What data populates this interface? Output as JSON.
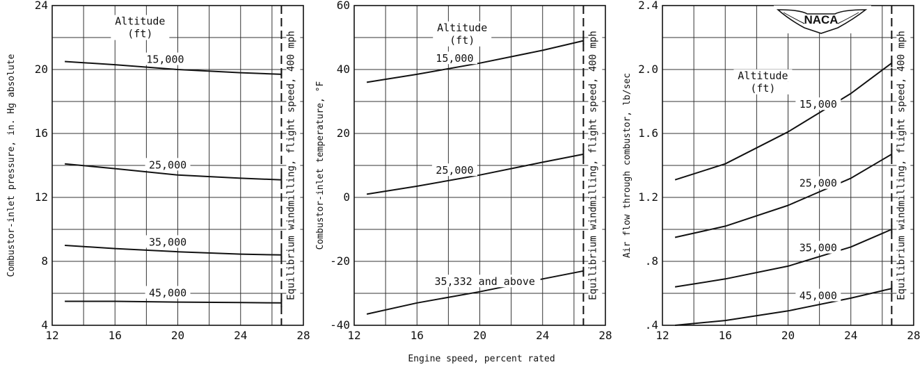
{
  "figure": {
    "common_xlabel": "Engine speed, percent rated",
    "logo_text": "NACA"
  },
  "chart_data": [
    {
      "type": "line",
      "ylabel": "Combustor-inlet pressure, in. Hg absolute",
      "xlim": [
        12,
        28
      ],
      "ylim": [
        4,
        24
      ],
      "xticks": [
        12,
        16,
        20,
        24,
        28
      ],
      "yticks": [
        4,
        8,
        12,
        16,
        20,
        24
      ],
      "xtick_labels": [
        "12",
        "16",
        "20",
        "24",
        "28"
      ],
      "ytick_labels": [
        "4",
        "8",
        "12",
        "16",
        "20",
        "24"
      ],
      "legend_title": [
        "Altitude",
        "(ft)"
      ],
      "windmill_x": 26.6,
      "windmill_label": "Equilibrium windmilling, flight speed, 400 mph",
      "series": [
        {
          "name": "15,000",
          "x": [
            12.8,
            16,
            20,
            24,
            26.6
          ],
          "y": [
            20.5,
            20.3,
            20.0,
            19.8,
            19.7
          ]
        },
        {
          "name": "25,000",
          "x": [
            12.8,
            16,
            20,
            24,
            26.6
          ],
          "y": [
            14.1,
            13.8,
            13.4,
            13.2,
            13.1
          ]
        },
        {
          "name": "35,000",
          "x": [
            12.8,
            16,
            20,
            24,
            26.6
          ],
          "y": [
            9.0,
            8.8,
            8.6,
            8.45,
            8.4
          ]
        },
        {
          "name": "45,000",
          "x": [
            12.8,
            16,
            20,
            24,
            26.6
          ],
          "y": [
            5.5,
            5.5,
            5.45,
            5.42,
            5.4
          ]
        }
      ]
    },
    {
      "type": "line",
      "ylabel": "Combustor-inlet temperature, °F",
      "xlim": [
        12,
        28
      ],
      "ylim": [
        -40,
        60
      ],
      "xticks": [
        12,
        16,
        20,
        24,
        28
      ],
      "yticks": [
        -40,
        -20,
        0,
        20,
        40,
        60
      ],
      "xtick_labels": [
        "12",
        "16",
        "20",
        "24",
        "28"
      ],
      "ytick_labels": [
        "-40",
        "-20",
        "0",
        "20",
        "40",
        "60"
      ],
      "legend_title": [
        "Altitude",
        "(ft)"
      ],
      "windmill_x": 26.6,
      "windmill_label": "Equilibrium windmilling, flight speed, 400 mph",
      "series": [
        {
          "name": "15,000",
          "x": [
            12.8,
            16,
            20,
            24,
            26.6
          ],
          "y": [
            36,
            38.5,
            42,
            46,
            49
          ]
        },
        {
          "name": "25,000",
          "x": [
            12.8,
            16,
            20,
            24,
            26.6
          ],
          "y": [
            1,
            3.5,
            7,
            11,
            13.5
          ]
        },
        {
          "name": "35,332 and above",
          "x": [
            12.8,
            16,
            20,
            24,
            26.6
          ],
          "y": [
            -36.5,
            -33,
            -29.5,
            -25.5,
            -23
          ]
        }
      ]
    },
    {
      "type": "line",
      "ylabel": "Air flow through combustor, lb/sec",
      "xlim": [
        12,
        28
      ],
      "ylim": [
        0.4,
        2.4
      ],
      "xticks": [
        12,
        16,
        20,
        24,
        28
      ],
      "yticks": [
        0.4,
        0.8,
        1.2,
        1.6,
        2.0,
        2.4
      ],
      "xtick_labels": [
        "12",
        "16",
        "20",
        "24",
        "28"
      ],
      "ytick_labels": [
        ".4",
        ".8",
        "1.2",
        "1.6",
        "2.0",
        "2.4"
      ],
      "legend_title": [
        "Altitude",
        "(ft)"
      ],
      "windmill_x": 26.6,
      "windmill_label": "Equilibrium windmilling, flight speed, 400 mph",
      "series": [
        {
          "name": "15,000",
          "x": [
            12.8,
            16,
            20,
            24,
            26.6
          ],
          "y": [
            1.31,
            1.41,
            1.61,
            1.85,
            2.04
          ]
        },
        {
          "name": "25,000",
          "x": [
            12.8,
            16,
            20,
            24,
            26.6
          ],
          "y": [
            0.95,
            1.02,
            1.15,
            1.32,
            1.47
          ]
        },
        {
          "name": "35,000",
          "x": [
            12.8,
            16,
            20,
            24,
            26.6
          ],
          "y": [
            0.64,
            0.69,
            0.77,
            0.89,
            1.0
          ]
        },
        {
          "name": "45,000",
          "x": [
            12.8,
            16,
            20,
            24,
            26.6
          ],
          "y": [
            0.4,
            0.43,
            0.49,
            0.57,
            0.63
          ]
        }
      ]
    }
  ]
}
